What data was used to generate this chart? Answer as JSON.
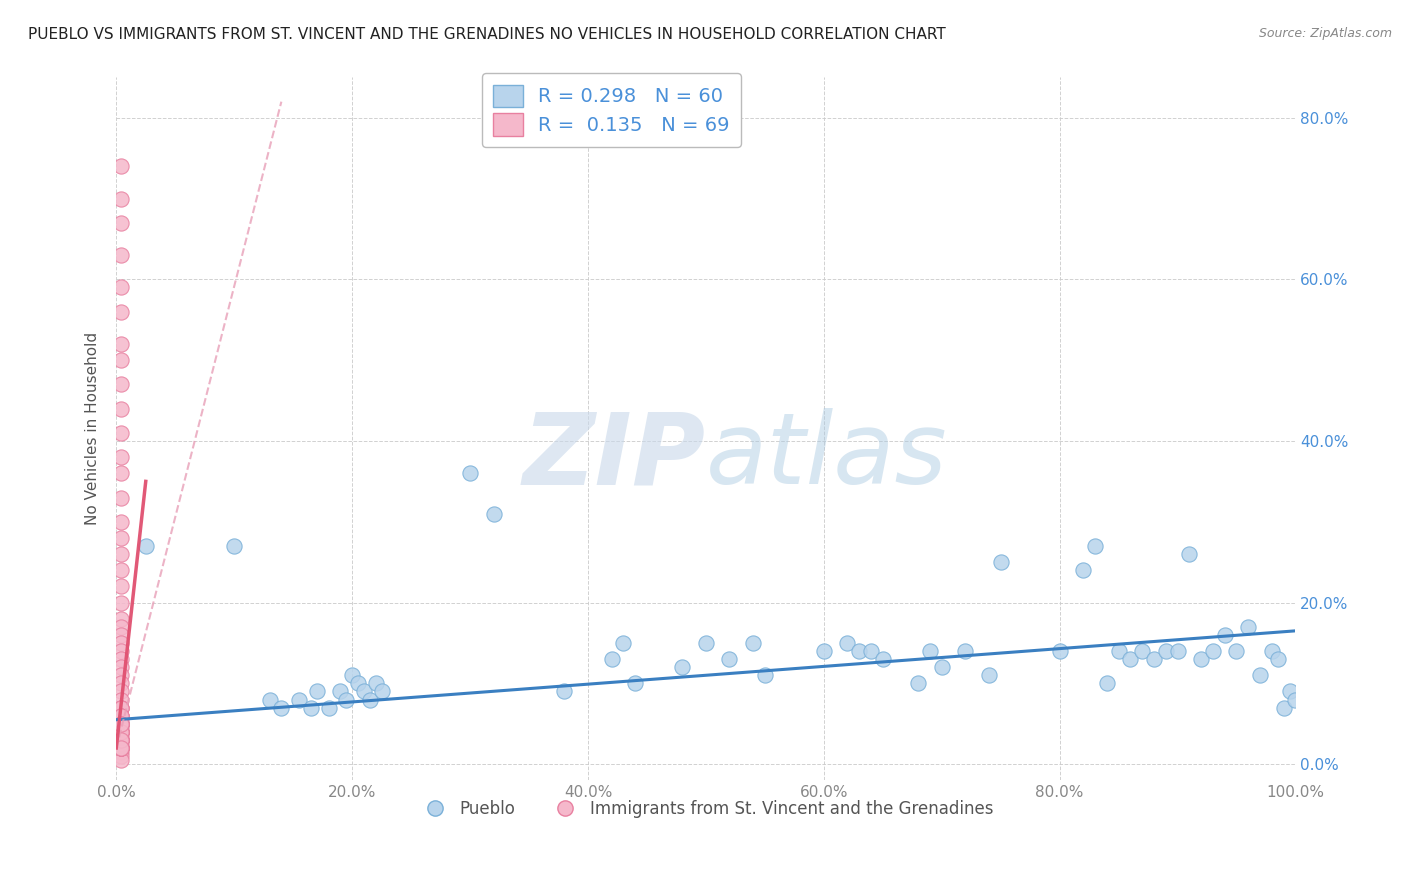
{
  "title": "PUEBLO VS IMMIGRANTS FROM ST. VINCENT AND THE GRENADINES NO VEHICLES IN HOUSEHOLD CORRELATION CHART",
  "source": "Source: ZipAtlas.com",
  "ylabel": "No Vehicles in Household",
  "xlim": [
    0.0,
    1.0
  ],
  "ylim": [
    -0.02,
    0.85
  ],
  "xticks": [
    0.0,
    0.2,
    0.4,
    0.6,
    0.8,
    1.0
  ],
  "xtick_labels": [
    "0.0%",
    "20.0%",
    "40.0%",
    "60.0%",
    "80.0%",
    "100.0%"
  ],
  "yticks": [
    0.0,
    0.2,
    0.4,
    0.6,
    0.8
  ],
  "ytick_labels": [
    "0.0%",
    "20.0%",
    "40.0%",
    "60.0%",
    "80.0%"
  ],
  "pueblo_color": "#b8d4ec",
  "pueblo_edge_color": "#7ab0d8",
  "svg_color": "#f5b8cb",
  "svg_edge_color": "#e880a0",
  "trend_pueblo_color": "#3a7fc1",
  "trend_svg_color_solid": "#e05070",
  "trend_svg_color_dashed": "#e8a0b8",
  "legend_pueblo_label": "Pueblo",
  "legend_svg_label": "Immigrants from St. Vincent and the Grenadines",
  "R_pueblo": 0.298,
  "N_pueblo": 60,
  "R_svg": 0.135,
  "N_svg": 69,
  "pueblo_x": [
    0.025,
    0.1,
    0.13,
    0.14,
    0.155,
    0.165,
    0.17,
    0.18,
    0.19,
    0.195,
    0.2,
    0.205,
    0.21,
    0.215,
    0.22,
    0.225,
    0.3,
    0.32,
    0.38,
    0.42,
    0.43,
    0.44,
    0.48,
    0.5,
    0.52,
    0.54,
    0.55,
    0.6,
    0.62,
    0.63,
    0.64,
    0.65,
    0.68,
    0.69,
    0.7,
    0.72,
    0.74,
    0.75,
    0.8,
    0.82,
    0.83,
    0.84,
    0.85,
    0.86,
    0.87,
    0.88,
    0.89,
    0.9,
    0.91,
    0.92,
    0.93,
    0.94,
    0.95,
    0.96,
    0.97,
    0.98,
    0.985,
    0.99,
    0.995,
    1.0
  ],
  "pueblo_y": [
    0.27,
    0.27,
    0.08,
    0.07,
    0.08,
    0.07,
    0.09,
    0.07,
    0.09,
    0.08,
    0.11,
    0.1,
    0.09,
    0.08,
    0.1,
    0.09,
    0.36,
    0.31,
    0.09,
    0.13,
    0.15,
    0.1,
    0.12,
    0.15,
    0.13,
    0.15,
    0.11,
    0.14,
    0.15,
    0.14,
    0.14,
    0.13,
    0.1,
    0.14,
    0.12,
    0.14,
    0.11,
    0.25,
    0.14,
    0.24,
    0.27,
    0.1,
    0.14,
    0.13,
    0.14,
    0.13,
    0.14,
    0.14,
    0.26,
    0.13,
    0.14,
    0.16,
    0.14,
    0.17,
    0.11,
    0.14,
    0.13,
    0.07,
    0.09,
    0.08
  ],
  "svg_x": [
    0.004,
    0.004,
    0.004,
    0.004,
    0.004,
    0.004,
    0.004,
    0.004,
    0.004,
    0.004,
    0.004,
    0.004,
    0.004,
    0.004,
    0.004,
    0.004,
    0.004,
    0.004,
    0.004,
    0.004,
    0.004,
    0.004,
    0.004,
    0.004,
    0.004,
    0.004,
    0.004,
    0.004,
    0.004,
    0.004,
    0.004,
    0.004,
    0.004,
    0.004,
    0.004,
    0.004,
    0.004,
    0.004,
    0.004,
    0.004,
    0.004,
    0.004,
    0.004,
    0.004,
    0.004,
    0.004,
    0.004,
    0.004,
    0.004,
    0.004,
    0.004,
    0.004,
    0.004,
    0.004,
    0.004,
    0.004,
    0.004,
    0.004,
    0.004,
    0.004,
    0.004,
    0.004,
    0.004,
    0.004,
    0.004,
    0.004,
    0.004,
    0.004,
    0.004
  ],
  "svg_y": [
    0.74,
    0.7,
    0.67,
    0.63,
    0.59,
    0.56,
    0.52,
    0.5,
    0.47,
    0.44,
    0.41,
    0.38,
    0.36,
    0.33,
    0.3,
    0.28,
    0.26,
    0.24,
    0.22,
    0.2,
    0.18,
    0.17,
    0.16,
    0.15,
    0.14,
    0.13,
    0.12,
    0.11,
    0.1,
    0.09,
    0.08,
    0.07,
    0.06,
    0.055,
    0.05,
    0.045,
    0.04,
    0.035,
    0.03,
    0.025,
    0.02,
    0.015,
    0.01,
    0.005,
    0.04,
    0.07,
    0.05,
    0.03,
    0.06,
    0.04,
    0.02,
    0.07,
    0.05,
    0.03,
    0.06,
    0.04,
    0.02,
    0.05,
    0.03,
    0.04,
    0.06,
    0.02,
    0.05,
    0.03,
    0.04,
    0.02,
    0.03,
    0.05,
    0.02
  ],
  "background_color": "#ffffff",
  "grid_color": "#cccccc",
  "watermark_color": "#ccdcee",
  "title_fontsize": 11,
  "axis_label_fontsize": 11,
  "tick_fontsize": 11,
  "legend_fontsize": 14
}
